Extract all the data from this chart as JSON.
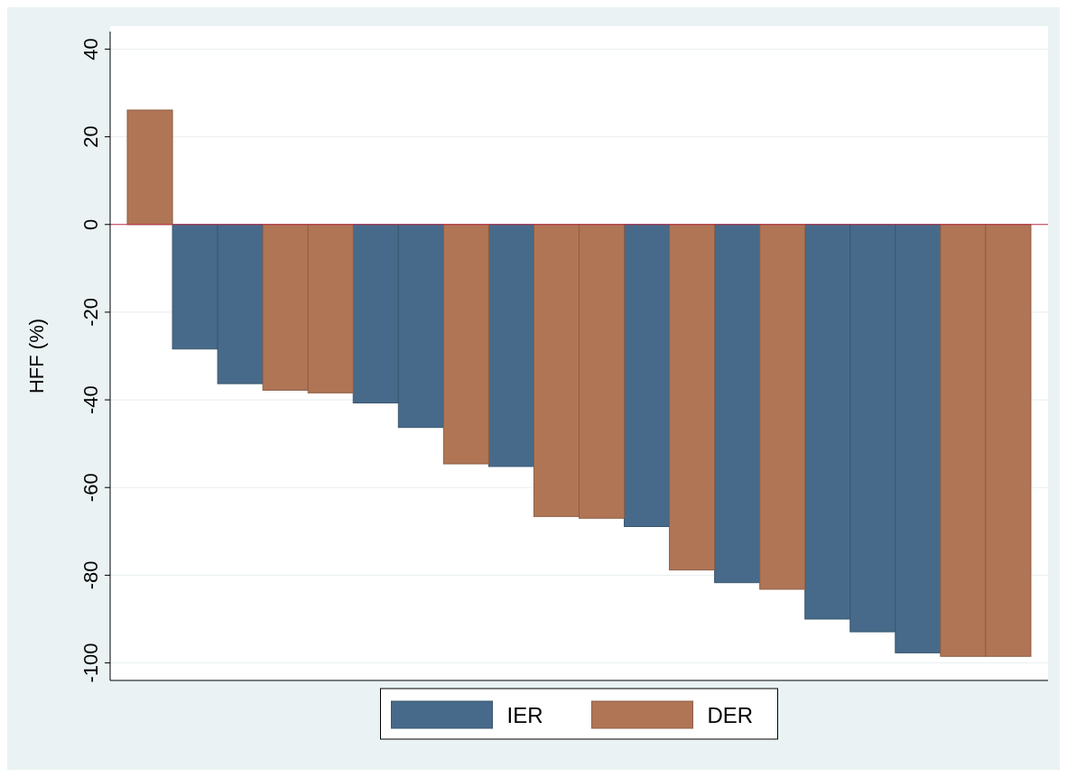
{
  "chart_data": {
    "type": "bar",
    "ylabel": "HFF (%)",
    "categories": [
      null,
      null,
      null,
      null,
      null,
      null,
      null,
      null,
      null,
      null,
      null,
      null,
      null,
      null,
      null,
      null,
      null,
      null,
      null,
      null
    ],
    "stacked": true,
    "series": [
      {
        "name": "IER",
        "color": "#476a8a",
        "values": [
          null,
          -28.4,
          -36.3,
          null,
          null,
          -40.7,
          -46.3,
          null,
          -55.2,
          null,
          null,
          -68.9,
          null,
          -81.7,
          null,
          -90.0,
          -92.9,
          -97.7,
          null,
          null
        ]
      },
      {
        "name": "DER",
        "color": "#b07555",
        "values": [
          26.1,
          null,
          null,
          -37.8,
          -38.4,
          null,
          null,
          -54.6,
          null,
          -66.6,
          -67.0,
          null,
          -78.8,
          null,
          -83.2,
          null,
          null,
          null,
          -98.5,
          -98.5
        ]
      }
    ],
    "ylim": [
      -104,
      44
    ],
    "yticks": [
      -100,
      -80,
      -60,
      -40,
      -20,
      0,
      20,
      40
    ],
    "grid": "y",
    "legend": "bottom",
    "ref_lines": [
      {
        "axis": "y",
        "value": 0,
        "color": "#c0334d"
      }
    ]
  }
}
